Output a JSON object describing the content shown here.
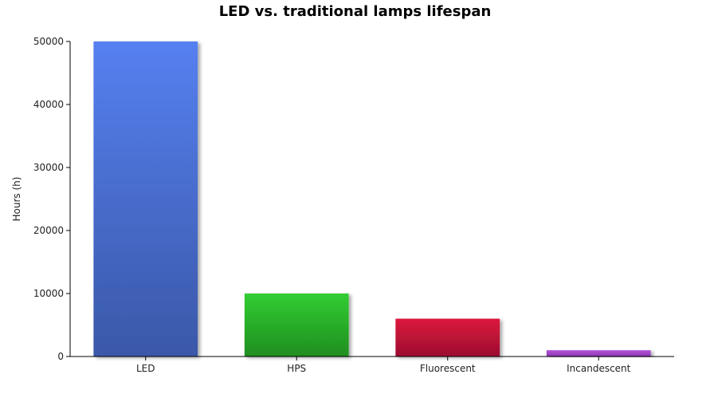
{
  "chart_data": {
    "type": "bar",
    "title": "LED vs. traditional lamps lifespan",
    "xlabel": "",
    "ylabel": "Hours (h)",
    "categories": [
      "LED",
      "HPS",
      "Fluorescent",
      "Incandescent"
    ],
    "values": [
      50000,
      10000,
      6000,
      1000
    ],
    "ylim": [
      0,
      50000
    ],
    "yticks": [
      0,
      10000,
      20000,
      30000,
      40000,
      50000
    ],
    "grid": false,
    "legend": "none",
    "colors": [
      {
        "top": "#5680f0",
        "bottom": "#3a58a8"
      },
      {
        "top": "#32cd32",
        "bottom": "#1f8e1f"
      },
      {
        "top": "#dc143c",
        "bottom": "#9c1030"
      },
      {
        "top": "#b455d8",
        "bottom": "#8a35b0"
      }
    ]
  }
}
